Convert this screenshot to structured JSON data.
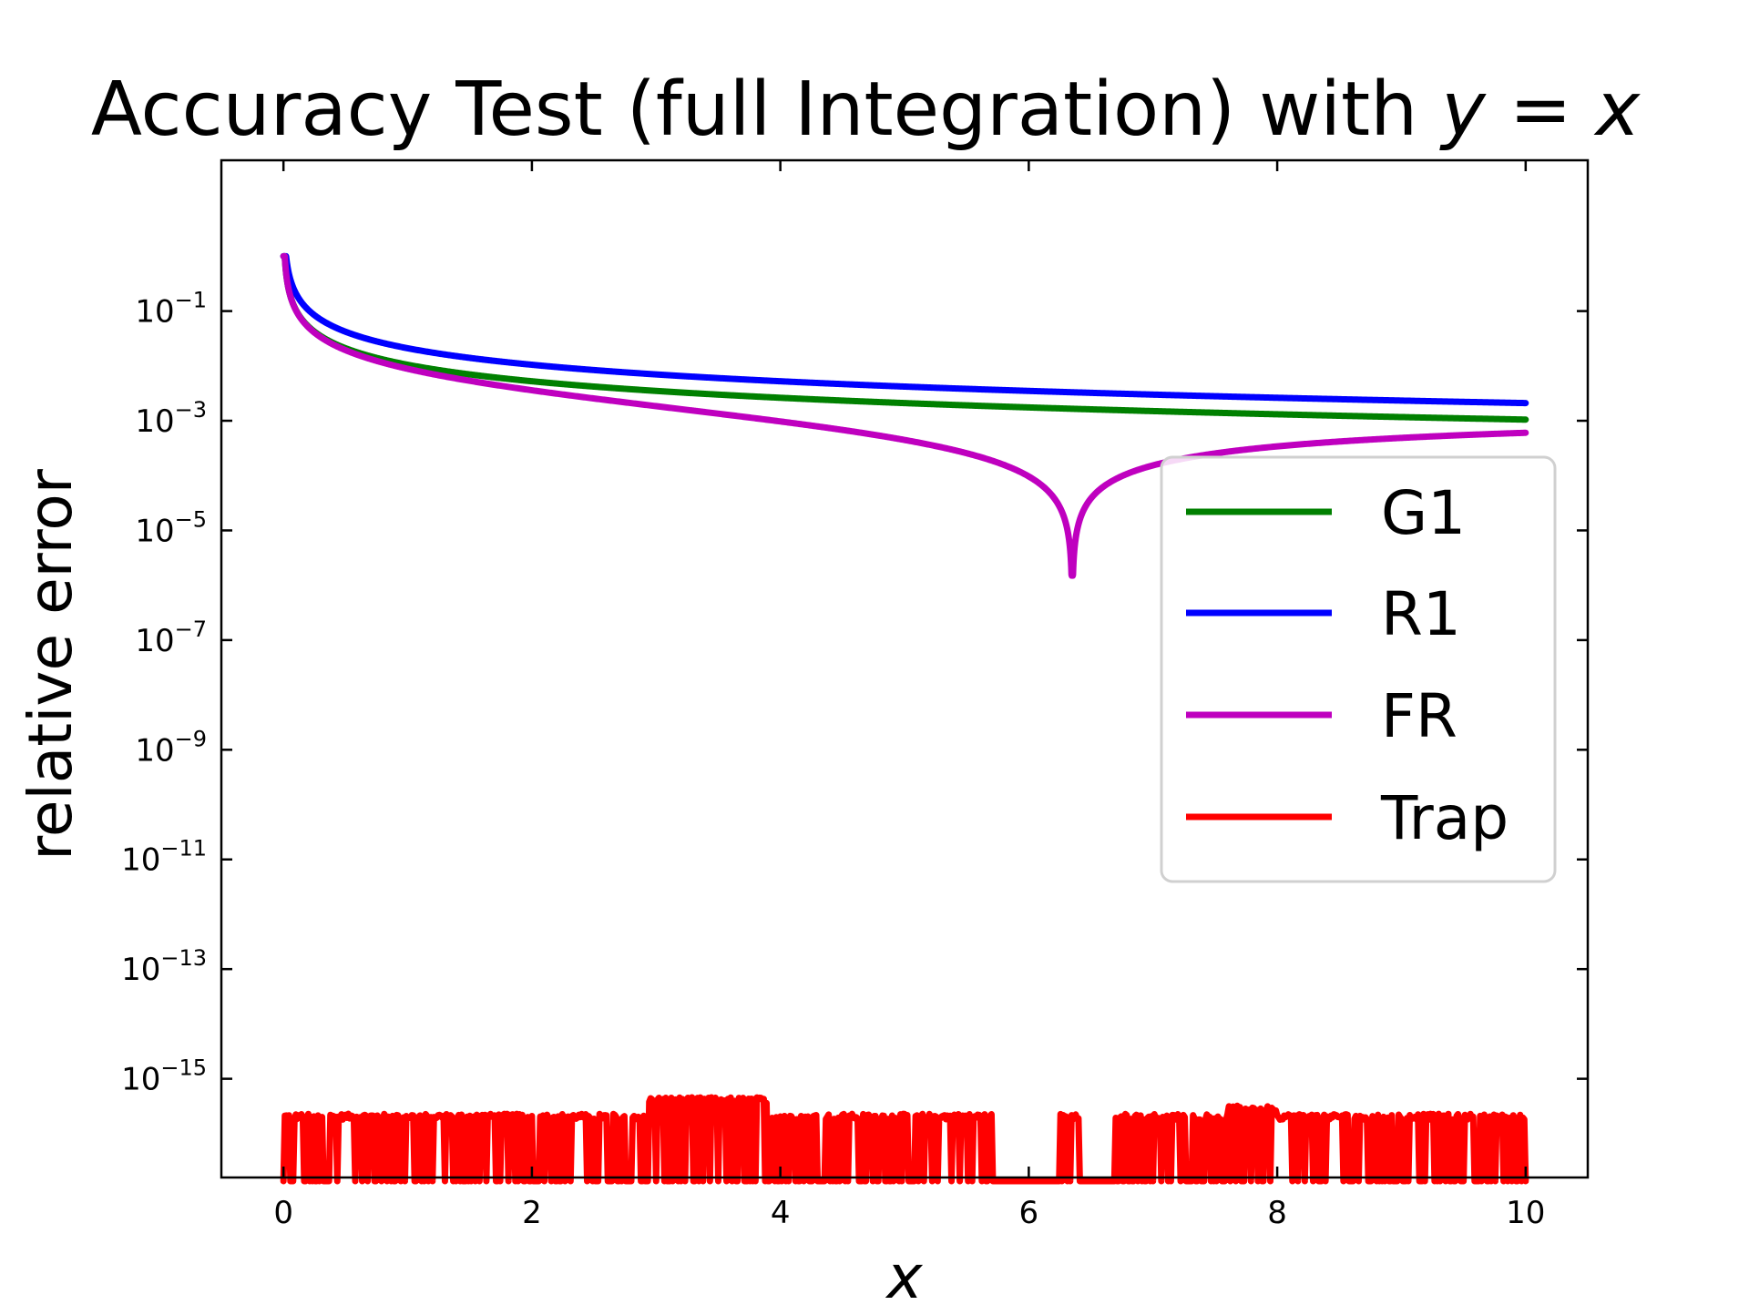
{
  "chart_data": {
    "type": "line",
    "title": "Accuracy Test (full Integration) with ",
    "title_math_y": "y",
    "title_math_eq": " = ",
    "title_math_x": "x",
    "xlabel": "x",
    "ylabel": "relative error",
    "xlim": [
      -0.5,
      10.5
    ],
    "ylim_log10": [
      -16.8,
      1.75
    ],
    "yscale": "log",
    "grid": false,
    "legend_position": "center-right",
    "xticks": [
      0,
      2,
      4,
      6,
      8,
      10
    ],
    "xtick_labels": [
      "0",
      "2",
      "4",
      "6",
      "8",
      "10"
    ],
    "yticks_log10": [
      -1,
      -3,
      -5,
      -7,
      -9,
      -11,
      -13,
      -15
    ],
    "ytick_base": "10",
    "ytick_exponents": [
      "−1",
      "−3",
      "−5",
      "−7",
      "−9",
      "−11",
      "−13",
      "−15"
    ],
    "series": [
      {
        "name": "G1",
        "color": "#008000",
        "model": "c_over_x",
        "c": 0.0105,
        "x_start": 0.0,
        "x_end": 10.0,
        "y_at_0": 1.0
      },
      {
        "name": "R1",
        "color": "#0000ff",
        "model": "c_over_x",
        "c": 0.021,
        "x_start": 0.0,
        "x_end": 10.0,
        "y_at_0": 1.0
      },
      {
        "name": "FR",
        "color": "#bf00bf",
        "model": "c_over_x_cusp",
        "c": 0.0105,
        "root": 6.35,
        "floor": 1.5e-06,
        "x_start": 0.0,
        "x_end": 10.0,
        "y_at_0": 1.0
      },
      {
        "name": "Trap",
        "color": "#ff0000",
        "model": "roundoff_noise",
        "level": 2e-16,
        "x_start": 0.0,
        "x_end": 10.0
      }
    ]
  }
}
